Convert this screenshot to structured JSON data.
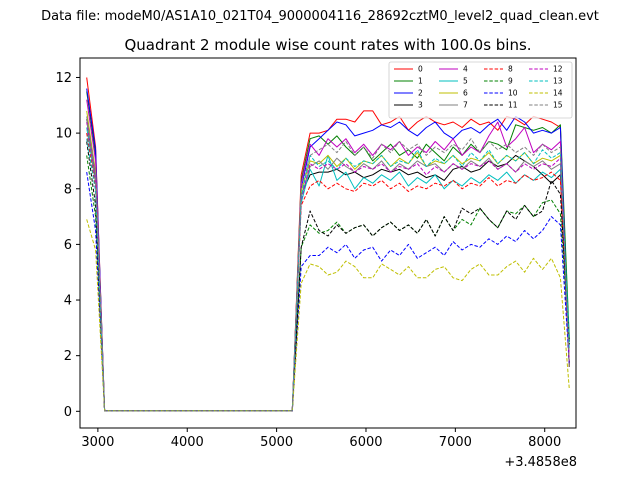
{
  "suptitle": "Data file: modeM0/AS1A10_021T04_9000004116_28692cztM0_level2_quad_clean.evt",
  "chart_data": {
    "type": "line",
    "title": "Quadrant 2 module wise count rates with 100.0s bins.",
    "xlabel": "",
    "ylabel": "",
    "x_offset_label": "+3.4858e8",
    "xlim": [
      2800,
      8350
    ],
    "ylim": [
      -0.6,
      12.7
    ],
    "xticks": [
      3000,
      4000,
      5000,
      6000,
      7000,
      8000
    ],
    "yticks": [
      0,
      2,
      4,
      6,
      8,
      10,
      12
    ],
    "legend": {
      "location": "top-right",
      "ncol": 4
    },
    "x": [
      2875,
      2975,
      3075,
      3175,
      3275,
      3375,
      3475,
      3575,
      3675,
      3775,
      3875,
      3975,
      4075,
      4175,
      4275,
      4375,
      4475,
      4575,
      4675,
      4775,
      4875,
      4975,
      5075,
      5175,
      5275,
      5375,
      5475,
      5575,
      5675,
      5775,
      5875,
      5975,
      6075,
      6175,
      6275,
      6375,
      6475,
      6575,
      6675,
      6775,
      6875,
      6975,
      7075,
      7175,
      7275,
      7375,
      7475,
      7575,
      7675,
      7775,
      7875,
      7975,
      8075,
      8175,
      8275
    ],
    "series": [
      {
        "name": "0",
        "color": "#ff0000",
        "dash": false,
        "values": [
          12.0,
          9.5,
          0.02,
          0.02,
          0.02,
          0.02,
          0.02,
          0.02,
          0.02,
          0.02,
          0.02,
          0.02,
          0.02,
          0.02,
          0.02,
          0.02,
          0.02,
          0.02,
          0.02,
          0.02,
          0.02,
          0.02,
          0.02,
          0.02,
          8.5,
          10.0,
          10.0,
          10.1,
          10.5,
          10.5,
          10.4,
          10.8,
          10.8,
          10.3,
          10.4,
          10.6,
          10.1,
          10.4,
          10.6,
          10.4,
          10.3,
          10.4,
          10.2,
          10.5,
          10.3,
          10.4,
          10.1,
          10.6,
          10.5,
          10.3,
          10.6,
          10.5,
          10.4,
          10.2,
          1.6
        ]
      },
      {
        "name": "1",
        "color": "#008000",
        "dash": false,
        "values": [
          11.5,
          9.2,
          0.02,
          0.02,
          0.02,
          0.02,
          0.02,
          0.02,
          0.02,
          0.02,
          0.02,
          0.02,
          0.02,
          0.02,
          0.02,
          0.02,
          0.02,
          0.02,
          0.02,
          0.02,
          0.02,
          0.02,
          0.02,
          0.02,
          8.3,
          9.8,
          9.9,
          9.6,
          9.9,
          9.5,
          9.2,
          9.5,
          9.0,
          9.3,
          9.6,
          9.2,
          9.4,
          9.1,
          9.6,
          9.3,
          9.0,
          9.5,
          9.2,
          9.6,
          9.3,
          9.7,
          9.6,
          9.4,
          10.3,
          10.2,
          10.1,
          10.2,
          10.0,
          10.3,
          2.6
        ]
      },
      {
        "name": "2",
        "color": "#0000ff",
        "dash": false,
        "values": [
          11.6,
          9.4,
          0.02,
          0.02,
          0.02,
          0.02,
          0.02,
          0.02,
          0.02,
          0.02,
          0.02,
          0.02,
          0.02,
          0.02,
          0.02,
          0.02,
          0.02,
          0.02,
          0.02,
          0.02,
          0.02,
          0.02,
          0.02,
          0.02,
          8.0,
          9.5,
          9.8,
          10.1,
          10.4,
          10.3,
          9.9,
          10.0,
          10.1,
          10.3,
          10.2,
          10.4,
          10.1,
          9.9,
          10.2,
          10.4,
          10.0,
          9.8,
          10.1,
          10.2,
          10.0,
          10.3,
          10.5,
          10.1,
          10.6,
          10.4,
          10.0,
          10.1,
          10.0,
          10.2,
          1.6
        ]
      },
      {
        "name": "3",
        "color": "#000000",
        "dash": false,
        "values": [
          10.5,
          8.3,
          0.02,
          0.02,
          0.02,
          0.02,
          0.02,
          0.02,
          0.02,
          0.02,
          0.02,
          0.02,
          0.02,
          0.02,
          0.02,
          0.02,
          0.02,
          0.02,
          0.02,
          0.02,
          0.02,
          0.02,
          0.02,
          0.02,
          7.8,
          8.5,
          8.6,
          8.6,
          8.7,
          8.5,
          8.6,
          8.4,
          8.5,
          8.7,
          8.6,
          8.7,
          8.5,
          8.6,
          8.4,
          8.5,
          8.3,
          8.7,
          8.8,
          8.6,
          8.7,
          9.0,
          8.8,
          8.9,
          9.2,
          9.0,
          8.8,
          8.5,
          8.2,
          8.5,
          1.6
        ]
      },
      {
        "name": "4",
        "color": "#bf00bf",
        "dash": false,
        "values": [
          11.2,
          9.0,
          0.02,
          0.02,
          0.02,
          0.02,
          0.02,
          0.02,
          0.02,
          0.02,
          0.02,
          0.02,
          0.02,
          0.02,
          0.02,
          0.02,
          0.02,
          0.02,
          0.02,
          0.02,
          0.02,
          0.02,
          0.02,
          0.02,
          8.2,
          9.6,
          9.2,
          9.8,
          9.5,
          9.8,
          9.3,
          9.6,
          9.2,
          9.6,
          9.4,
          9.7,
          9.2,
          9.5,
          9.3,
          9.7,
          9.4,
          9.8,
          9.2,
          9.5,
          9.3,
          9.9,
          10.4,
          9.5,
          9.8,
          10.2,
          9.3,
          9.6,
          9.4,
          9.7,
          1.6
        ]
      },
      {
        "name": "5",
        "color": "#00bfbf",
        "dash": false,
        "values": [
          10.2,
          8.2,
          0.02,
          0.02,
          0.02,
          0.02,
          0.02,
          0.02,
          0.02,
          0.02,
          0.02,
          0.02,
          0.02,
          0.02,
          0.02,
          0.02,
          0.02,
          0.02,
          0.02,
          0.02,
          0.02,
          0.02,
          0.02,
          0.02,
          7.5,
          8.7,
          8.1,
          9.2,
          8.3,
          8.6,
          8.0,
          8.4,
          8.2,
          8.5,
          8.3,
          8.6,
          8.1,
          8.4,
          8.2,
          8.5,
          8.0,
          8.3,
          8.1,
          8.4,
          8.2,
          8.5,
          8.3,
          8.6,
          8.2,
          8.5,
          8.3,
          8.6,
          8.4,
          8.7,
          2.5
        ]
      },
      {
        "name": "6",
        "color": "#bfbf00",
        "dash": false,
        "values": [
          10.8,
          8.6,
          0.02,
          0.02,
          0.02,
          0.02,
          0.02,
          0.02,
          0.02,
          0.02,
          0.02,
          0.02,
          0.02,
          0.02,
          0.02,
          0.02,
          0.02,
          0.02,
          0.02,
          0.02,
          0.02,
          0.02,
          0.02,
          0.02,
          7.9,
          9.0,
          8.9,
          9.2,
          8.8,
          9.1,
          8.7,
          9.0,
          8.9,
          9.2,
          8.8,
          9.1,
          8.9,
          9.3,
          8.8,
          9.0,
          8.9,
          9.2,
          8.9,
          9.1,
          9.0,
          9.3,
          8.9,
          9.2,
          9.0,
          9.3,
          8.9,
          9.1,
          9.0,
          9.2,
          1.6
        ]
      },
      {
        "name": "7",
        "color": "#808080",
        "dash": false,
        "values": [
          10.6,
          8.5,
          0.02,
          0.02,
          0.02,
          0.02,
          0.02,
          0.02,
          0.02,
          0.02,
          0.02,
          0.02,
          0.02,
          0.02,
          0.02,
          0.02,
          0.02,
          0.02,
          0.02,
          0.02,
          0.02,
          0.02,
          0.02,
          0.02,
          7.7,
          8.8,
          9.0,
          8.7,
          9.1,
          8.8,
          8.6,
          8.9,
          8.7,
          9.0,
          8.6,
          8.9,
          8.7,
          9.0,
          8.8,
          8.9,
          8.6,
          8.9,
          8.7,
          9.0,
          8.8,
          9.1,
          8.7,
          8.9,
          8.6,
          9.0,
          8.8,
          9.0,
          8.7,
          8.9,
          1.6
        ]
      },
      {
        "name": "8",
        "color": "#ff0000",
        "dash": true,
        "values": [
          10.0,
          8.0,
          0.02,
          0.02,
          0.02,
          0.02,
          0.02,
          0.02,
          0.02,
          0.02,
          0.02,
          0.02,
          0.02,
          0.02,
          0.02,
          0.02,
          0.02,
          0.02,
          0.02,
          0.02,
          0.02,
          0.02,
          0.02,
          0.02,
          7.4,
          8.1,
          8.3,
          8.0,
          8.2,
          8.0,
          7.9,
          8.2,
          8.1,
          8.3,
          8.0,
          8.2,
          7.9,
          8.1,
          8.0,
          8.2,
          8.1,
          8.3,
          8.0,
          8.2,
          8.1,
          8.4,
          8.1,
          8.3,
          8.2,
          8.5,
          8.3,
          8.4,
          8.6,
          8.3,
          1.7
        ]
      },
      {
        "name": "9",
        "color": "#008000",
        "dash": true,
        "values": [
          9.2,
          7.0,
          0.02,
          0.02,
          0.02,
          0.02,
          0.02,
          0.02,
          0.02,
          0.02,
          0.02,
          0.02,
          0.02,
          0.02,
          0.02,
          0.02,
          0.02,
          0.02,
          0.02,
          0.02,
          0.02,
          0.02,
          0.02,
          0.02,
          5.9,
          6.7,
          6.4,
          6.5,
          6.8,
          6.4,
          6.6,
          6.7,
          6.3,
          6.6,
          6.8,
          6.5,
          6.7,
          6.4,
          6.9,
          6.3,
          7.0,
          6.5,
          6.9,
          6.7,
          7.3,
          6.9,
          6.6,
          7.2,
          7.1,
          7.4,
          7.0,
          7.5,
          7.6,
          7.1,
          2.5
        ]
      },
      {
        "name": "10",
        "color": "#0000ff",
        "dash": true,
        "values": [
          8.6,
          6.5,
          0.02,
          0.02,
          0.02,
          0.02,
          0.02,
          0.02,
          0.02,
          0.02,
          0.02,
          0.02,
          0.02,
          0.02,
          0.02,
          0.02,
          0.02,
          0.02,
          0.02,
          0.02,
          0.02,
          0.02,
          0.02,
          0.02,
          5.2,
          5.6,
          5.6,
          5.9,
          5.7,
          6.0,
          5.5,
          5.8,
          5.9,
          5.4,
          5.8,
          5.6,
          6.0,
          5.5,
          5.7,
          5.9,
          5.6,
          6.1,
          5.8,
          6.0,
          5.9,
          6.2,
          6.0,
          6.3,
          6.1,
          6.5,
          6.2,
          6.5,
          7.0,
          6.7,
          1.7
        ]
      },
      {
        "name": "11",
        "color": "#000000",
        "dash": true,
        "values": [
          9.7,
          7.4,
          0.02,
          0.02,
          0.02,
          0.02,
          0.02,
          0.02,
          0.02,
          0.02,
          0.02,
          0.02,
          0.02,
          0.02,
          0.02,
          0.02,
          0.02,
          0.02,
          0.02,
          0.02,
          0.02,
          0.02,
          0.02,
          0.02,
          5.9,
          7.2,
          6.5,
          6.3,
          6.7,
          6.4,
          6.6,
          6.7,
          6.3,
          6.6,
          6.8,
          6.5,
          6.7,
          6.4,
          6.9,
          6.3,
          7.0,
          6.5,
          7.3,
          7.1,
          7.3,
          6.9,
          6.6,
          7.2,
          6.9,
          7.4,
          7.0,
          7.2,
          8.3,
          7.8,
          2.4
        ]
      },
      {
        "name": "12",
        "color": "#bf00bf",
        "dash": true,
        "values": [
          10.4,
          8.3,
          0.02,
          0.02,
          0.02,
          0.02,
          0.02,
          0.02,
          0.02,
          0.02,
          0.02,
          0.02,
          0.02,
          0.02,
          0.02,
          0.02,
          0.02,
          0.02,
          0.02,
          0.02,
          0.02,
          0.02,
          0.02,
          0.02,
          7.6,
          8.9,
          8.7,
          8.9,
          8.7,
          8.9,
          8.6,
          8.8,
          8.7,
          8.9,
          8.6,
          8.8,
          8.7,
          8.9,
          8.5,
          8.8,
          8.6,
          8.9,
          8.7,
          8.9,
          8.8,
          9.0,
          8.7,
          8.9,
          8.6,
          8.9,
          8.7,
          8.9,
          8.8,
          9.1,
          1.8
        ]
      },
      {
        "name": "13",
        "color": "#00bfbf",
        "dash": true,
        "values": [
          9.8,
          7.9,
          0.02,
          0.02,
          0.02,
          0.02,
          0.02,
          0.02,
          0.02,
          0.02,
          0.02,
          0.02,
          0.02,
          0.02,
          0.02,
          0.02,
          0.02,
          0.02,
          0.02,
          0.02,
          0.02,
          0.02,
          0.02,
          0.02,
          7.7,
          9.2,
          8.8,
          9.0,
          8.7,
          9.1,
          8.8,
          9.0,
          8.9,
          9.2,
          8.8,
          9.0,
          8.9,
          9.4,
          8.8,
          9.1,
          8.9,
          9.2,
          8.8,
          9.3,
          9.0,
          9.4,
          8.9,
          9.2,
          9.0,
          9.3,
          8.9,
          9.4,
          9.1,
          9.3,
          2.2
        ]
      },
      {
        "name": "14",
        "color": "#bfbf00",
        "dash": true,
        "values": [
          6.9,
          5.8,
          0.02,
          0.02,
          0.02,
          0.02,
          0.02,
          0.02,
          0.02,
          0.02,
          0.02,
          0.02,
          0.02,
          0.02,
          0.02,
          0.02,
          0.02,
          0.02,
          0.02,
          0.02,
          0.02,
          0.02,
          0.02,
          0.02,
          4.6,
          5.3,
          5.2,
          4.9,
          5.0,
          5.4,
          5.2,
          4.8,
          4.8,
          5.3,
          5.1,
          4.9,
          5.2,
          4.8,
          4.8,
          5.1,
          5.2,
          4.8,
          4.7,
          5.1,
          5.3,
          4.9,
          4.9,
          5.2,
          5.4,
          5.0,
          5.5,
          5.1,
          5.5,
          4.8,
          0.8
        ]
      },
      {
        "name": "15",
        "color": "#808080",
        "dash": true,
        "values": [
          10.5,
          8.2,
          0.02,
          0.02,
          0.02,
          0.02,
          0.02,
          0.02,
          0.02,
          0.02,
          0.02,
          0.02,
          0.02,
          0.02,
          0.02,
          0.02,
          0.02,
          0.02,
          0.02,
          0.02,
          0.02,
          0.02,
          0.02,
          0.02,
          8.0,
          9.2,
          9.4,
          9.6,
          9.3,
          9.7,
          9.2,
          9.5,
          9.1,
          9.6,
          9.3,
          9.7,
          9.4,
          9.6,
          9.2,
          9.5,
          9.3,
          9.6,
          9.4,
          9.8,
          9.3,
          9.7,
          9.4,
          9.6,
          9.3,
          9.5,
          9.2,
          9.6,
          9.3,
          9.5,
          1.7
        ]
      }
    ]
  }
}
